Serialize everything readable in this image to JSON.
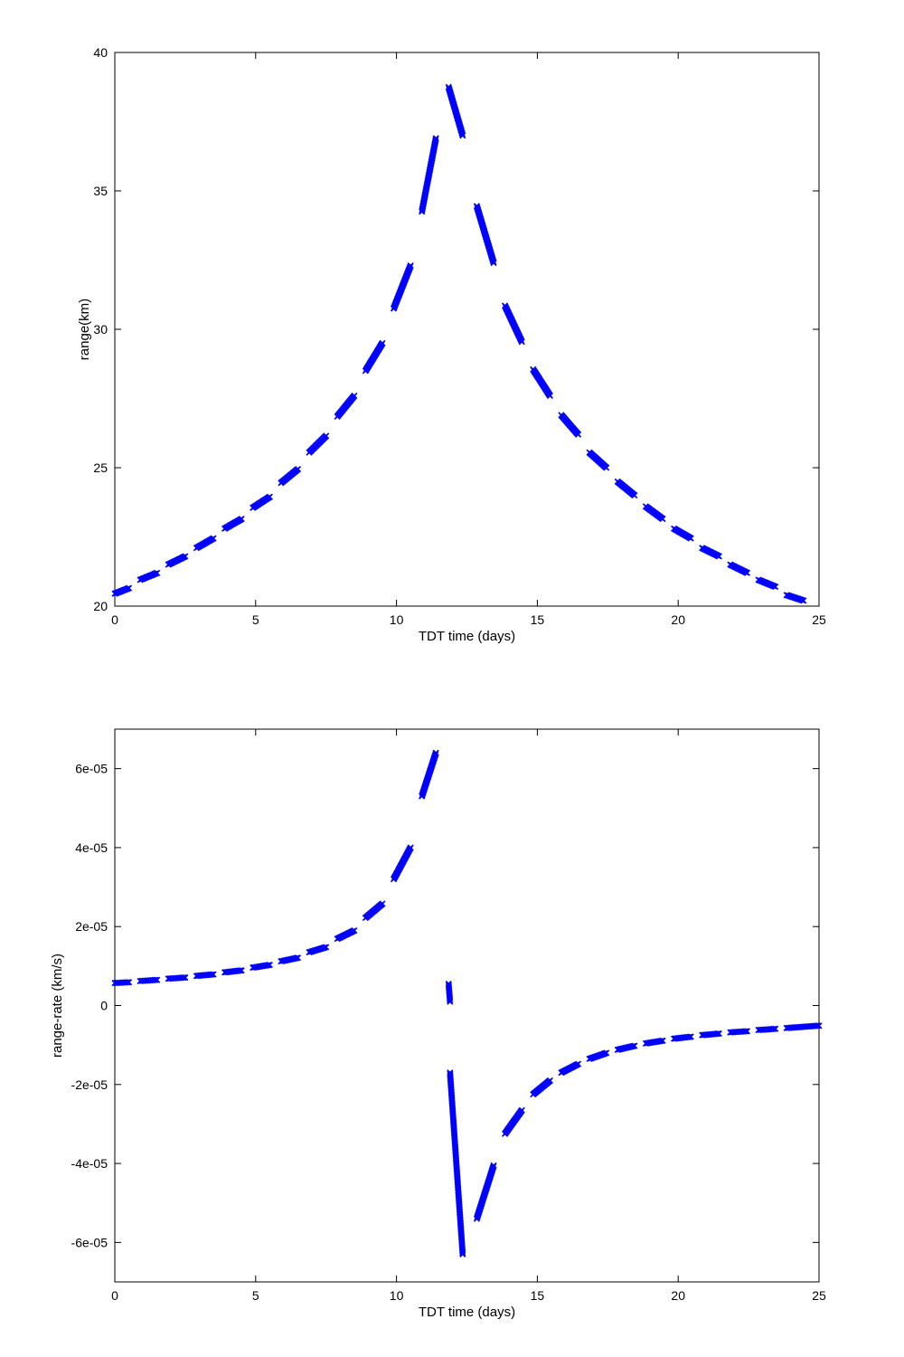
{
  "colors": {
    "series": "#0000ff",
    "axis": "#000000",
    "background": "#ffffff"
  },
  "chart_data": [
    {
      "type": "scatter",
      "marker": "x",
      "title": "",
      "xlabel": "TDT time (days)",
      "ylabel": "range(km)",
      "xlim": [
        0,
        25
      ],
      "ylim": [
        20,
        40
      ],
      "x_ticks": [
        0,
        5,
        10,
        15,
        20,
        25
      ],
      "x_tick_labels": [
        "0",
        "5",
        "10",
        "15",
        "20",
        "25"
      ],
      "y_ticks": [
        20,
        25,
        30,
        35,
        40
      ],
      "y_tick_labels": [
        "20",
        "25",
        "30",
        "35",
        "40"
      ],
      "grid": false,
      "series": [
        {
          "segments": [
            {
              "x": [
                0.0,
                0.5
              ],
              "y": [
                20.45,
                20.65
              ]
            },
            {
              "x": [
                0.9,
                1.5
              ],
              "y": [
                20.95,
                21.2
              ]
            },
            {
              "x": [
                1.9,
                2.5
              ],
              "y": [
                21.5,
                21.8
              ]
            },
            {
              "x": [
                2.9,
                3.5
              ],
              "y": [
                22.1,
                22.45
              ]
            },
            {
              "x": [
                3.9,
                4.5
              ],
              "y": [
                22.8,
                23.15
              ]
            },
            {
              "x": [
                4.9,
                5.5
              ],
              "y": [
                23.55,
                23.95
              ]
            },
            {
              "x": [
                5.9,
                6.5
              ],
              "y": [
                24.45,
                24.95
              ]
            },
            {
              "x": [
                6.9,
                7.5
              ],
              "y": [
                25.55,
                26.15
              ]
            },
            {
              "x": [
                7.9,
                8.5
              ],
              "y": [
                26.85,
                27.6
              ]
            },
            {
              "x": [
                8.9,
                9.5
              ],
              "y": [
                28.5,
                29.5
              ]
            },
            {
              "x": [
                9.9,
                10.5
              ],
              "y": [
                30.75,
                32.3
              ]
            },
            {
              "x": [
                10.9,
                11.4
              ],
              "y": [
                34.25,
                36.9
              ]
            },
            {
              "x": [
                11.85,
                12.35
              ],
              "y": [
                38.75,
                37.0
              ]
            },
            {
              "x": [
                12.85,
                13.45
              ],
              "y": [
                34.45,
                32.4
              ]
            },
            {
              "x": [
                13.85,
                14.45
              ],
              "y": [
                30.85,
                29.55
              ]
            },
            {
              "x": [
                14.85,
                15.45
              ],
              "y": [
                28.55,
                27.6
              ]
            },
            {
              "x": [
                15.85,
                16.45
              ],
              "y": [
                26.9,
                26.2
              ]
            },
            {
              "x": [
                16.85,
                17.45
              ],
              "y": [
                25.55,
                25.0
              ]
            },
            {
              "x": [
                17.85,
                18.45
              ],
              "y": [
                24.5,
                24.0
              ]
            },
            {
              "x": [
                18.85,
                19.45
              ],
              "y": [
                23.6,
                23.15
              ]
            },
            {
              "x": [
                19.85,
                20.45
              ],
              "y": [
                22.8,
                22.45
              ]
            },
            {
              "x": [
                20.85,
                21.45
              ],
              "y": [
                22.1,
                21.8
              ]
            },
            {
              "x": [
                21.85,
                22.45
              ],
              "y": [
                21.5,
                21.2
              ]
            },
            {
              "x": [
                22.85,
                23.45
              ],
              "y": [
                20.95,
                20.7
              ]
            },
            {
              "x": [
                23.85,
                24.45
              ],
              "y": [
                20.4,
                20.2
              ]
            }
          ]
        }
      ]
    },
    {
      "type": "scatter",
      "marker": "x",
      "title": "",
      "xlabel": "TDT time (days)",
      "ylabel": "range-rate (km/s)",
      "xlim": [
        0,
        25
      ],
      "ylim": [
        -7e-05,
        7e-05
      ],
      "x_ticks": [
        0,
        5,
        10,
        15,
        20,
        25
      ],
      "x_tick_labels": [
        "0",
        "5",
        "10",
        "15",
        "20",
        "25"
      ],
      "y_ticks": [
        -6e-05,
        -4e-05,
        -2e-05,
        0,
        2e-05,
        4e-05,
        6e-05
      ],
      "y_tick_labels": [
        "-6e-05",
        "-4e-05",
        "-2e-05",
        "0",
        "2e-05",
        "4e-05",
        "6e-05"
      ],
      "grid": false,
      "series": [
        {
          "segments": [
            {
              "x": [
                0.0,
                0.5
              ],
              "y": [
                5.7e-06,
                5.9e-06
              ]
            },
            {
              "x": [
                0.9,
                1.5
              ],
              "y": [
                6.2e-06,
                6.5e-06
              ]
            },
            {
              "x": [
                1.9,
                2.5
              ],
              "y": [
                6.8e-06,
                7.1e-06
              ]
            },
            {
              "x": [
                2.9,
                3.5
              ],
              "y": [
                7.5e-06,
                7.9e-06
              ]
            },
            {
              "x": [
                3.9,
                4.5
              ],
              "y": [
                8.4e-06,
                8.9e-06
              ]
            },
            {
              "x": [
                4.9,
                5.5
              ],
              "y": [
                9.6e-06,
                1.03e-05
              ]
            },
            {
              "x": [
                5.9,
                6.5
              ],
              "y": [
                1.12e-05,
                1.21e-05
              ]
            },
            {
              "x": [
                6.9,
                7.5
              ],
              "y": [
                1.35e-05,
                1.48e-05
              ]
            },
            {
              "x": [
                7.9,
                8.5
              ],
              "y": [
                1.69e-05,
                1.9e-05
              ]
            },
            {
              "x": [
                8.9,
                9.5
              ],
              "y": [
                2.22e-05,
                2.58e-05
              ]
            },
            {
              "x": [
                9.9,
                10.5
              ],
              "y": [
                3.2e-05,
                4e-05
              ]
            },
            {
              "x": [
                10.9,
                11.4
              ],
              "y": [
                5.3e-05,
                6.4e-05
              ]
            },
            {
              "x": [
                11.85,
                11.9
              ],
              "y": [
                5.5e-06,
                1e-06
              ]
            },
            {
              "x": [
                11.9,
                12.35
              ],
              "y": [
                -1.7e-05,
                -6.3e-05
              ]
            },
            {
              "x": [
                12.85,
                13.45
              ],
              "y": [
                -5.4e-05,
                -4.05e-05
              ]
            },
            {
              "x": [
                13.85,
                14.45
              ],
              "y": [
                -3.25e-05,
                -2.65e-05
              ]
            },
            {
              "x": [
                14.85,
                15.45
              ],
              "y": [
                -2.25e-05,
                -1.9e-05
              ]
            },
            {
              "x": [
                15.85,
                16.45
              ],
              "y": [
                -1.7e-05,
                -1.48e-05
              ]
            },
            {
              "x": [
                16.85,
                17.45
              ],
              "y": [
                -1.35e-05,
                -1.2e-05
              ]
            },
            {
              "x": [
                17.85,
                18.45
              ],
              "y": [
                -1.12e-05,
                -1.02e-05
              ]
            },
            {
              "x": [
                18.85,
                19.45
              ],
              "y": [
                -9.6e-06,
                -8.9e-06
              ]
            },
            {
              "x": [
                19.85,
                20.45
              ],
              "y": [
                -8.4e-06,
                -7.9e-06
              ]
            },
            {
              "x": [
                20.85,
                21.45
              ],
              "y": [
                -7.5e-06,
                -7.1e-06
              ]
            },
            {
              "x": [
                21.85,
                22.45
              ],
              "y": [
                -6.8e-06,
                -6.5e-06
              ]
            },
            {
              "x": [
                22.85,
                23.45
              ],
              "y": [
                -6.2e-06,
                -5.9e-06
              ]
            },
            {
              "x": [
                23.85,
                25.0
              ],
              "y": [
                -5.7e-06,
                -5.1e-06
              ]
            }
          ]
        }
      ]
    }
  ]
}
